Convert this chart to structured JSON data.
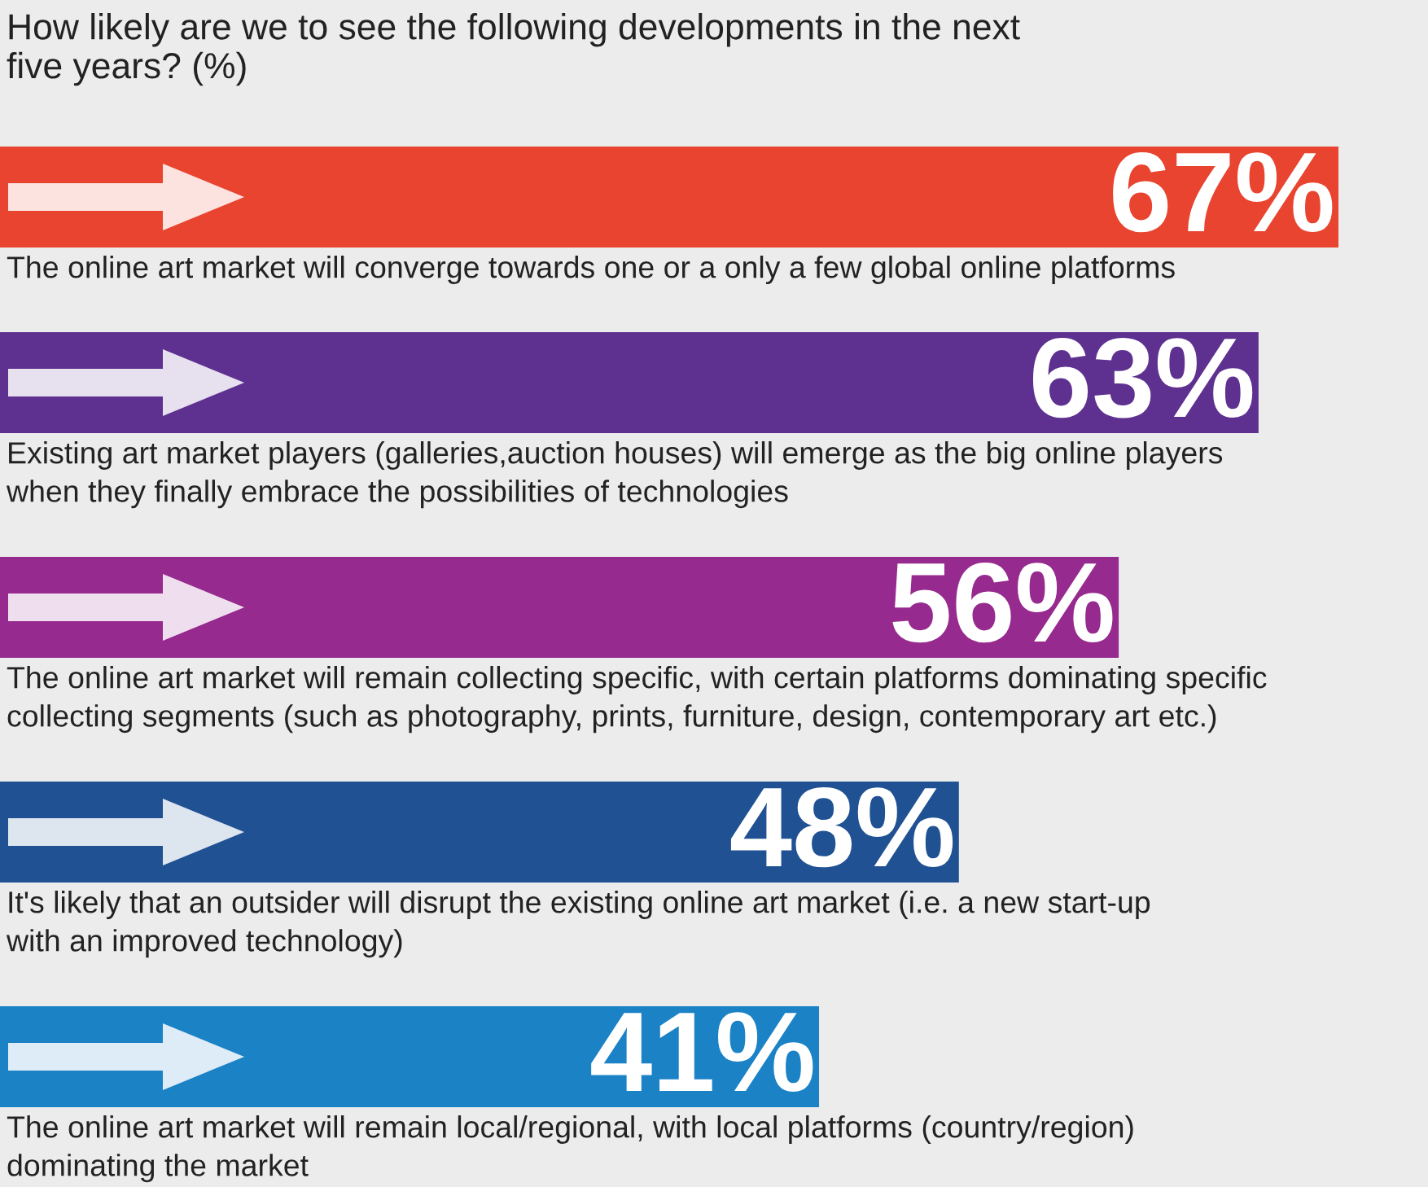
{
  "chart_data": {
    "type": "bar",
    "orientation": "horizontal",
    "title": "How likely are we to see the following developments in the next\nfive years? (%)",
    "categories": [
      "The online art market will converge towards one or a only a few global online platforms",
      "Existing art market players (galleries,auction houses) will emerge as the big online players\nwhen they finally embrace the possibilities of technologies",
      "The online art market will remain collecting specific, with certain platforms dominating specific\ncollecting segments (such as photography, prints, furniture, design, contemporary art etc.)",
      "It's likely that an outsider will disrupt the existing online art market (i.e. a new start-up\nwith an improved technology)",
      "The online art market will remain local/regional, with local platforms (country/region)\ndominating the market"
    ],
    "values": [
      67,
      63,
      56,
      48,
      41
    ],
    "colors": [
      "#e8442f",
      "#5e3190",
      "#962a8e",
      "#1f5193",
      "#1b82c5"
    ],
    "value_labels": [
      "67%",
      "63%",
      "56%",
      "48%",
      "41%"
    ]
  }
}
